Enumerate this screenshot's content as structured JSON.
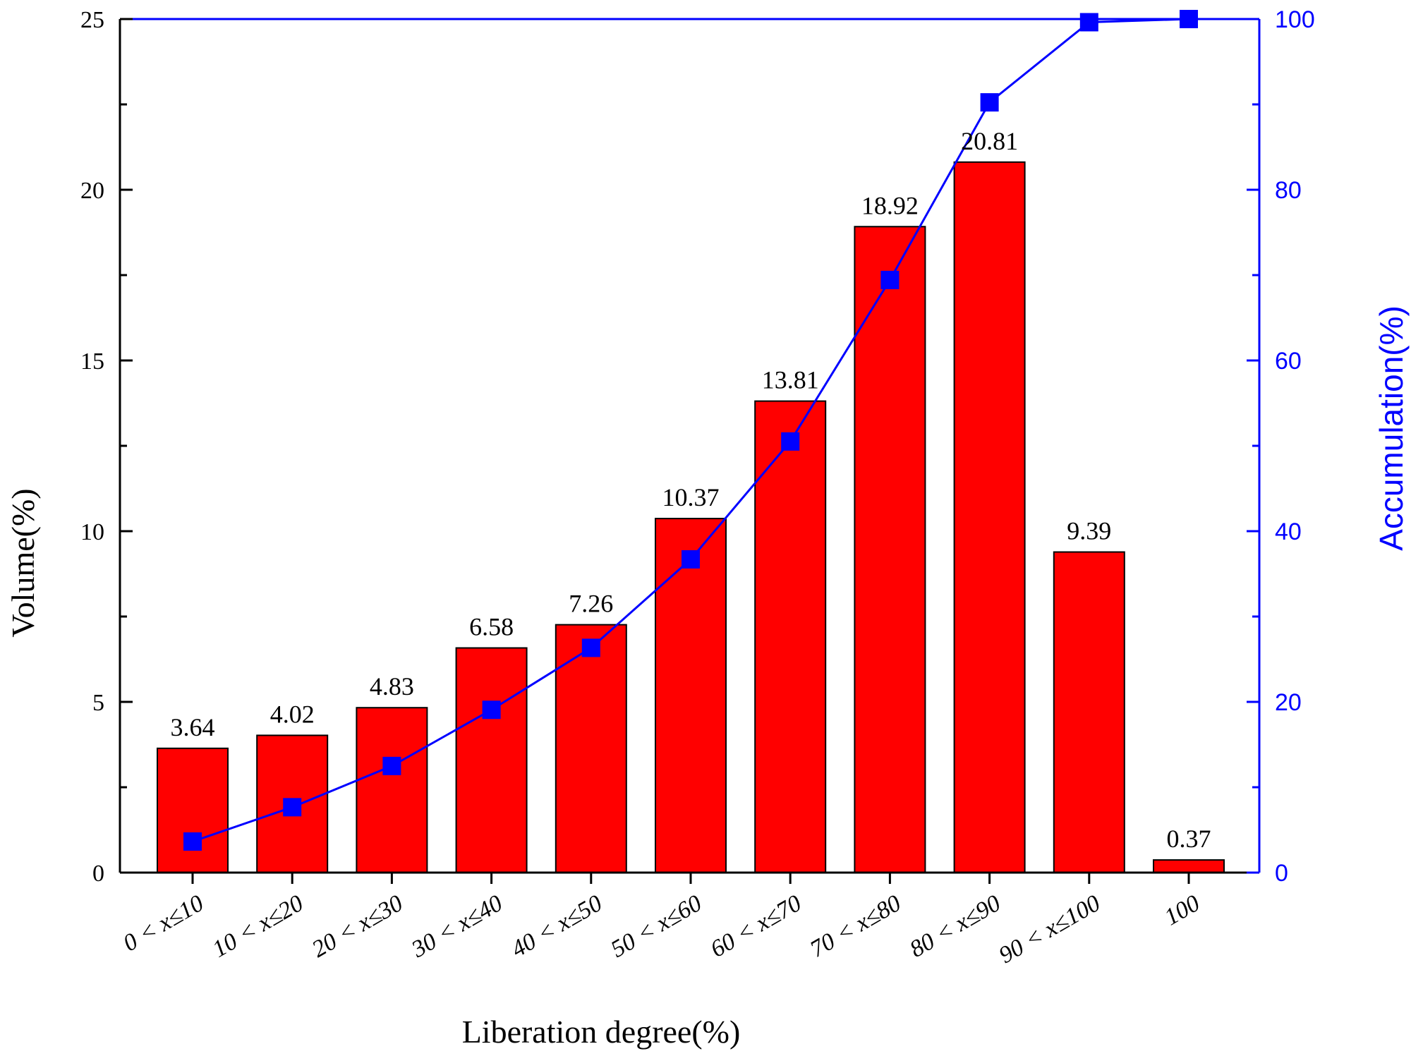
{
  "chart_data": {
    "type": "bar",
    "title": "",
    "xlabel": "Liberation degree(%)",
    "ylabel": "Volume(%)",
    "y2label": "Accumulation(%)",
    "categories": [
      "0 < x≤10",
      "10 < x≤20",
      "20 < x≤30",
      "30 < x≤40",
      "40 < x≤50",
      "50 < x≤60",
      "60 < x≤70",
      "70 < x≤80",
      "80 < x≤90",
      "90 < x≤100",
      "100"
    ],
    "series": [
      {
        "type": "bar",
        "axis": "left",
        "color": "#ff0000",
        "values": [
          3.64,
          4.02,
          4.83,
          6.58,
          7.26,
          10.37,
          13.81,
          18.92,
          20.81,
          9.39,
          0.37
        ],
        "labels": [
          "3.64",
          "4.02",
          "4.83",
          "6.58",
          "7.26",
          "10.37",
          "13.81",
          "18.92",
          "20.81",
          "9.39",
          "0.37"
        ]
      },
      {
        "type": "line",
        "axis": "right",
        "color": "#0000ff",
        "marker": "square",
        "values": [
          3.64,
          7.66,
          12.49,
          19.07,
          26.33,
          36.7,
          50.51,
          69.43,
          90.24,
          99.63,
          100.0
        ]
      }
    ],
    "ylim": [
      0,
      25
    ],
    "yticks": [
      0,
      5,
      10,
      15,
      20,
      25
    ],
    "y2lim": [
      0,
      100
    ],
    "y2ticks": [
      0,
      20,
      40,
      60,
      80,
      100
    ],
    "grid": false
  }
}
